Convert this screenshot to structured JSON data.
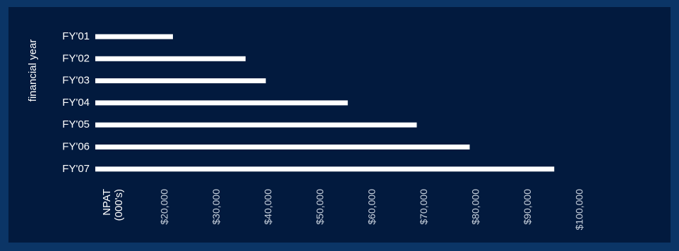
{
  "chart_data": {
    "type": "bar",
    "orientation": "horizontal",
    "ylabel": "financial year",
    "xlabel_lines": [
      "NPAT",
      "(000's)"
    ],
    "categories": [
      "FY'01",
      "FY'02",
      "FY'03",
      "FY'04",
      "FY'05",
      "FY'06",
      "FY'07"
    ],
    "values": [
      21500,
      35500,
      39400,
      55200,
      68500,
      78700,
      95000
    ],
    "x_ticks": [
      {
        "value": 20000,
        "label": "$20,000"
      },
      {
        "value": 30000,
        "label": "$30,000"
      },
      {
        "value": 40000,
        "label": "$40,000"
      },
      {
        "value": 50000,
        "label": "$50,000"
      },
      {
        "value": 60000,
        "label": "$60,000"
      },
      {
        "value": 70000,
        "label": "$70,000"
      },
      {
        "value": 80000,
        "label": "$80,000"
      },
      {
        "value": 90000,
        "label": "$90,000"
      },
      {
        "value": 100000,
        "label": "$100,000"
      }
    ],
    "xlim": [
      0,
      100000
    ],
    "grid": false,
    "colors": {
      "bar": "#ffffff",
      "background": "#021a3e",
      "frame": "#0b3566"
    }
  }
}
